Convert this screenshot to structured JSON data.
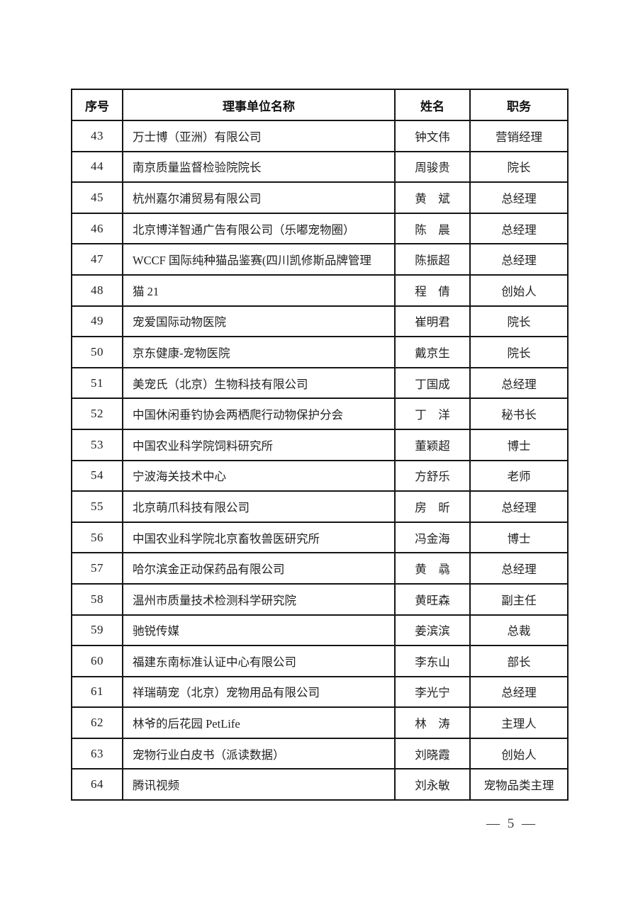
{
  "table": {
    "headers": {
      "no": "序号",
      "org": "理事单位名称",
      "name": "姓名",
      "title": "职务"
    },
    "rows": [
      {
        "no": "43",
        "org": "万士博（亚洲）有限公司",
        "name": "钟文伟",
        "title": "营销经理"
      },
      {
        "no": "44",
        "org": "南京质量监督检验院院长",
        "name": "周骏贵",
        "title": "院长"
      },
      {
        "no": "45",
        "org": "杭州嘉尔浦贸易有限公司",
        "name": "黄　斌",
        "title": "总经理"
      },
      {
        "no": "46",
        "org": "北京博洋智通广告有限公司（乐嘟宠物圈）",
        "name": "陈　晨",
        "title": "总经理"
      },
      {
        "no": "47",
        "org": "WCCF 国际纯种猫品鉴赛(四川凯修斯品牌管理",
        "name": "陈振超",
        "title": "总经理"
      },
      {
        "no": "48",
        "org": "猫 21",
        "name": "程　倩",
        "title": "创始人"
      },
      {
        "no": "49",
        "org": "宠爱国际动物医院",
        "name": "崔明君",
        "title": "院长"
      },
      {
        "no": "50",
        "org": "京东健康-宠物医院",
        "name": "戴京生",
        "title": "院长"
      },
      {
        "no": "51",
        "org": "美宠氏（北京）生物科技有限公司",
        "name": "丁国成",
        "title": "总经理"
      },
      {
        "no": "52",
        "org": "中国休闲垂钓协会两栖爬行动物保护分会",
        "name": "丁　洋",
        "title": "秘书长"
      },
      {
        "no": "53",
        "org": "中国农业科学院饲料研究所",
        "name": "董颖超",
        "title": "博士"
      },
      {
        "no": "54",
        "org": "宁波海关技术中心",
        "name": "方舒乐",
        "title": "老师"
      },
      {
        "no": "55",
        "org": "北京萌爪科技有限公司",
        "name": "房　昕",
        "title": "总经理"
      },
      {
        "no": "56",
        "org": "中国农业科学院北京畜牧兽医研究所",
        "name": "冯金海",
        "title": "博士"
      },
      {
        "no": "57",
        "org": "哈尔滨金正动保药品有限公司",
        "name": "黄　骉",
        "title": "总经理"
      },
      {
        "no": "58",
        "org": "温州市质量技术检测科学研究院",
        "name": "黄旺森",
        "title": "副主任"
      },
      {
        "no": "59",
        "org": "驰锐传媒",
        "name": "姜滨滨",
        "title": "总裁"
      },
      {
        "no": "60",
        "org": "福建东南标准认证中心有限公司",
        "name": "李东山",
        "title": "部长"
      },
      {
        "no": "61",
        "org": "祥瑞萌宠（北京）宠物用品有限公司",
        "name": "李光宁",
        "title": "总经理"
      },
      {
        "no": "62",
        "org": "林爷的后花园 PetLife",
        "name": "林　涛",
        "title": "主理人"
      },
      {
        "no": "63",
        "org": "宠物行业白皮书（派读数据）",
        "name": "刘晓霞",
        "title": "创始人"
      },
      {
        "no": "64",
        "org": "腾讯视频",
        "name": "刘永敏",
        "title": "宠物品类主理"
      }
    ]
  },
  "footer": {
    "page_number_text": "— 5 —"
  }
}
